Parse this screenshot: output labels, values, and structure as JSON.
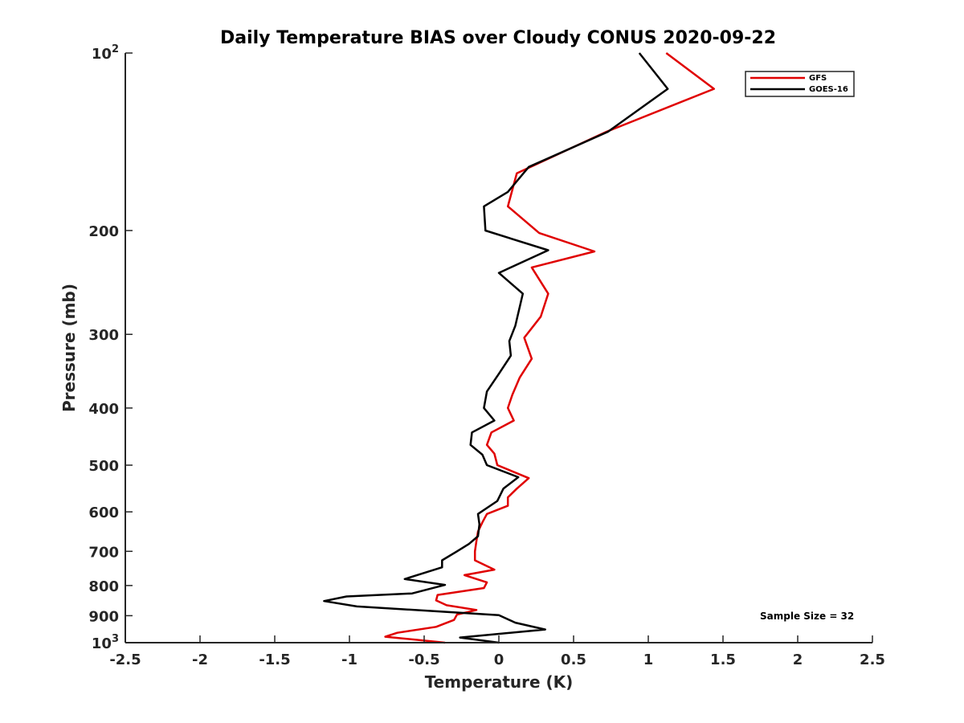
{
  "chart_data": {
    "type": "line",
    "title": "Daily Temperature BIAS over Cloudy CONUS 2020-09-22",
    "xlabel": "Temperature (K)",
    "ylabel": "Pressure (mb)",
    "xlim": [
      -2.5,
      2.5
    ],
    "ylim": [
      100,
      1000
    ],
    "y_scale": "log",
    "y_reversed": true,
    "x_ticks": [
      "-2.5",
      "-2",
      "-1.5",
      "-1",
      "-0.5",
      "0",
      "0.5",
      "1",
      "1.5",
      "2",
      "2.5"
    ],
    "y_ticks": [
      {
        "value": 100,
        "base": "10",
        "exp": "2"
      },
      {
        "value": 200,
        "label": "200"
      },
      {
        "value": 300,
        "label": "300"
      },
      {
        "value": 400,
        "label": "400"
      },
      {
        "value": 500,
        "label": "500"
      },
      {
        "value": 600,
        "label": "600"
      },
      {
        "value": 700,
        "label": "700"
      },
      {
        "value": 800,
        "label": "800"
      },
      {
        "value": 900,
        "label": "900"
      },
      {
        "value": 1000,
        "base": "10",
        "exp": "3"
      }
    ],
    "grid": false,
    "legend_position": "top-right",
    "series": [
      {
        "name": "GFS",
        "color": "#e00000",
        "points": [
          [
            1.12,
            100
          ],
          [
            1.44,
            115
          ],
          [
            0.72,
            136
          ],
          [
            0.12,
            160
          ],
          [
            0.06,
            182
          ],
          [
            0.27,
            202
          ],
          [
            0.64,
            217
          ],
          [
            0.22,
            231
          ],
          [
            0.33,
            256
          ],
          [
            0.28,
            280
          ],
          [
            0.17,
            304
          ],
          [
            0.22,
            330
          ],
          [
            0.14,
            355
          ],
          [
            0.09,
            380
          ],
          [
            0.06,
            400
          ],
          [
            0.1,
            420
          ],
          [
            -0.05,
            440
          ],
          [
            -0.08,
            462
          ],
          [
            -0.03,
            478
          ],
          [
            -0.01,
            500
          ],
          [
            0.2,
            526
          ],
          [
            0.12,
            548
          ],
          [
            0.06,
            567
          ],
          [
            0.06,
            586
          ],
          [
            -0.08,
            605
          ],
          [
            -0.11,
            625
          ],
          [
            -0.14,
            648
          ],
          [
            -0.15,
            672
          ],
          [
            -0.16,
            700
          ],
          [
            -0.16,
            725
          ],
          [
            -0.03,
            752
          ],
          [
            -0.23,
            768
          ],
          [
            -0.08,
            790
          ],
          [
            -0.1,
            808
          ],
          [
            -0.41,
            830
          ],
          [
            -0.42,
            848
          ],
          [
            -0.35,
            864
          ],
          [
            -0.15,
            880
          ],
          [
            -0.28,
            896
          ],
          [
            -0.3,
            915
          ],
          [
            -0.42,
            940
          ],
          [
            -0.68,
            962
          ],
          [
            -0.76,
            977
          ],
          [
            -0.36,
            1000
          ]
        ]
      },
      {
        "name": "GOES-16",
        "color": "#000000",
        "points": [
          [
            0.94,
            100
          ],
          [
            1.13,
            115
          ],
          [
            0.73,
            136
          ],
          [
            0.2,
            156
          ],
          [
            0.06,
            172
          ],
          [
            -0.1,
            182
          ],
          [
            -0.09,
            200
          ],
          [
            0.33,
            216
          ],
          [
            0.0,
            236
          ],
          [
            0.16,
            256
          ],
          [
            0.11,
            290
          ],
          [
            0.07,
            308
          ],
          [
            0.08,
            326
          ],
          [
            0.0,
            350
          ],
          [
            -0.08,
            375
          ],
          [
            -0.1,
            400
          ],
          [
            -0.03,
            420
          ],
          [
            -0.18,
            440
          ],
          [
            -0.19,
            462
          ],
          [
            -0.11,
            480
          ],
          [
            -0.08,
            500
          ],
          [
            0.13,
            524
          ],
          [
            0.03,
            548
          ],
          [
            -0.01,
            575
          ],
          [
            -0.14,
            605
          ],
          [
            -0.13,
            630
          ],
          [
            -0.14,
            660
          ],
          [
            -0.2,
            680
          ],
          [
            -0.28,
            700
          ],
          [
            -0.38,
            725
          ],
          [
            -0.38,
            745
          ],
          [
            -0.63,
            780
          ],
          [
            -0.36,
            798
          ],
          [
            -0.58,
            825
          ],
          [
            -1.02,
            835
          ],
          [
            -1.17,
            850
          ],
          [
            -0.95,
            868
          ],
          [
            0.0,
            898
          ],
          [
            0.11,
            925
          ],
          [
            0.31,
            950
          ],
          [
            -0.26,
            980
          ],
          [
            0.0,
            1000
          ]
        ]
      }
    ],
    "annotation": "Sample Size = 32"
  }
}
